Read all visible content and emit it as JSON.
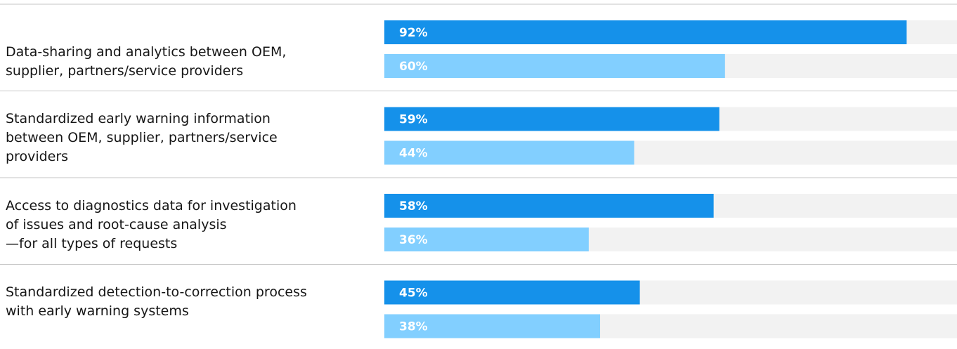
{
  "chart_data": {
    "type": "bar",
    "orientation": "horizontal",
    "categories": [
      "Data-sharing and analytics between OEM,\nsupplier, partners/service providers",
      "Standardized early warning information\nbetween OEM, supplier, partners/service\nproviders",
      "Access to diagnostics data for investigation\nof issues and root-cause analysis\n—for all types of requests",
      "Standardized detection-to-correction process\nwith early warning systems"
    ],
    "series": [
      {
        "color": "#1591ea",
        "values": [
          92,
          59,
          58,
          45
        ],
        "value_labels": [
          "92%",
          "59%",
          "58%",
          "45%"
        ]
      },
      {
        "color": "#82cfff",
        "values": [
          60,
          44,
          36,
          38
        ],
        "value_labels": [
          "60%",
          "44%",
          "36%",
          "38%"
        ]
      }
    ],
    "xlim": [
      0,
      100
    ]
  }
}
